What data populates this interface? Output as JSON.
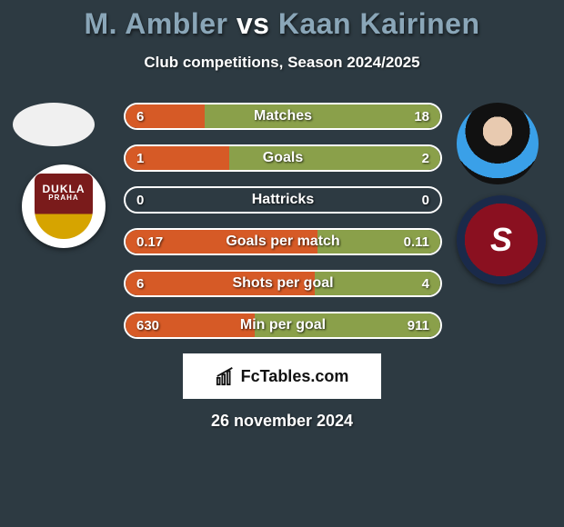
{
  "title": {
    "player1": "M. Ambler",
    "vs": "vs",
    "player2": "Kaan Kairinen"
  },
  "subtitle": "Club competitions, Season 2024/2025",
  "avatars": {
    "left": {
      "bg": "#eeeeee"
    },
    "right": {
      "bg": "#000000"
    }
  },
  "clubs": {
    "left": {
      "line1": "DUKLA",
      "line2": "PRAHA"
    },
    "right": {
      "letter": "S"
    }
  },
  "colors": {
    "left_fill": "#d65a26",
    "right_fill": "#8aa04a",
    "row_bg": "#2d3a42"
  },
  "stats": [
    {
      "label": "Matches",
      "left_val": "6",
      "right_val": "18",
      "left_pct": 25,
      "right_pct": 75
    },
    {
      "label": "Goals",
      "left_val": "1",
      "right_val": "2",
      "left_pct": 33,
      "right_pct": 67
    },
    {
      "label": "Hattricks",
      "left_val": "0",
      "right_val": "0",
      "left_pct": 0,
      "right_pct": 0
    },
    {
      "label": "Goals per match",
      "left_val": "0.17",
      "right_val": "0.11",
      "left_pct": 61,
      "right_pct": 39
    },
    {
      "label": "Shots per goal",
      "left_val": "6",
      "right_val": "4",
      "left_pct": 60,
      "right_pct": 40
    },
    {
      "label": "Min per goal",
      "left_val": "630",
      "right_val": "911",
      "left_pct": 41,
      "right_pct": 59
    }
  ],
  "brand": "FcTables.com",
  "date": "26 november 2024"
}
